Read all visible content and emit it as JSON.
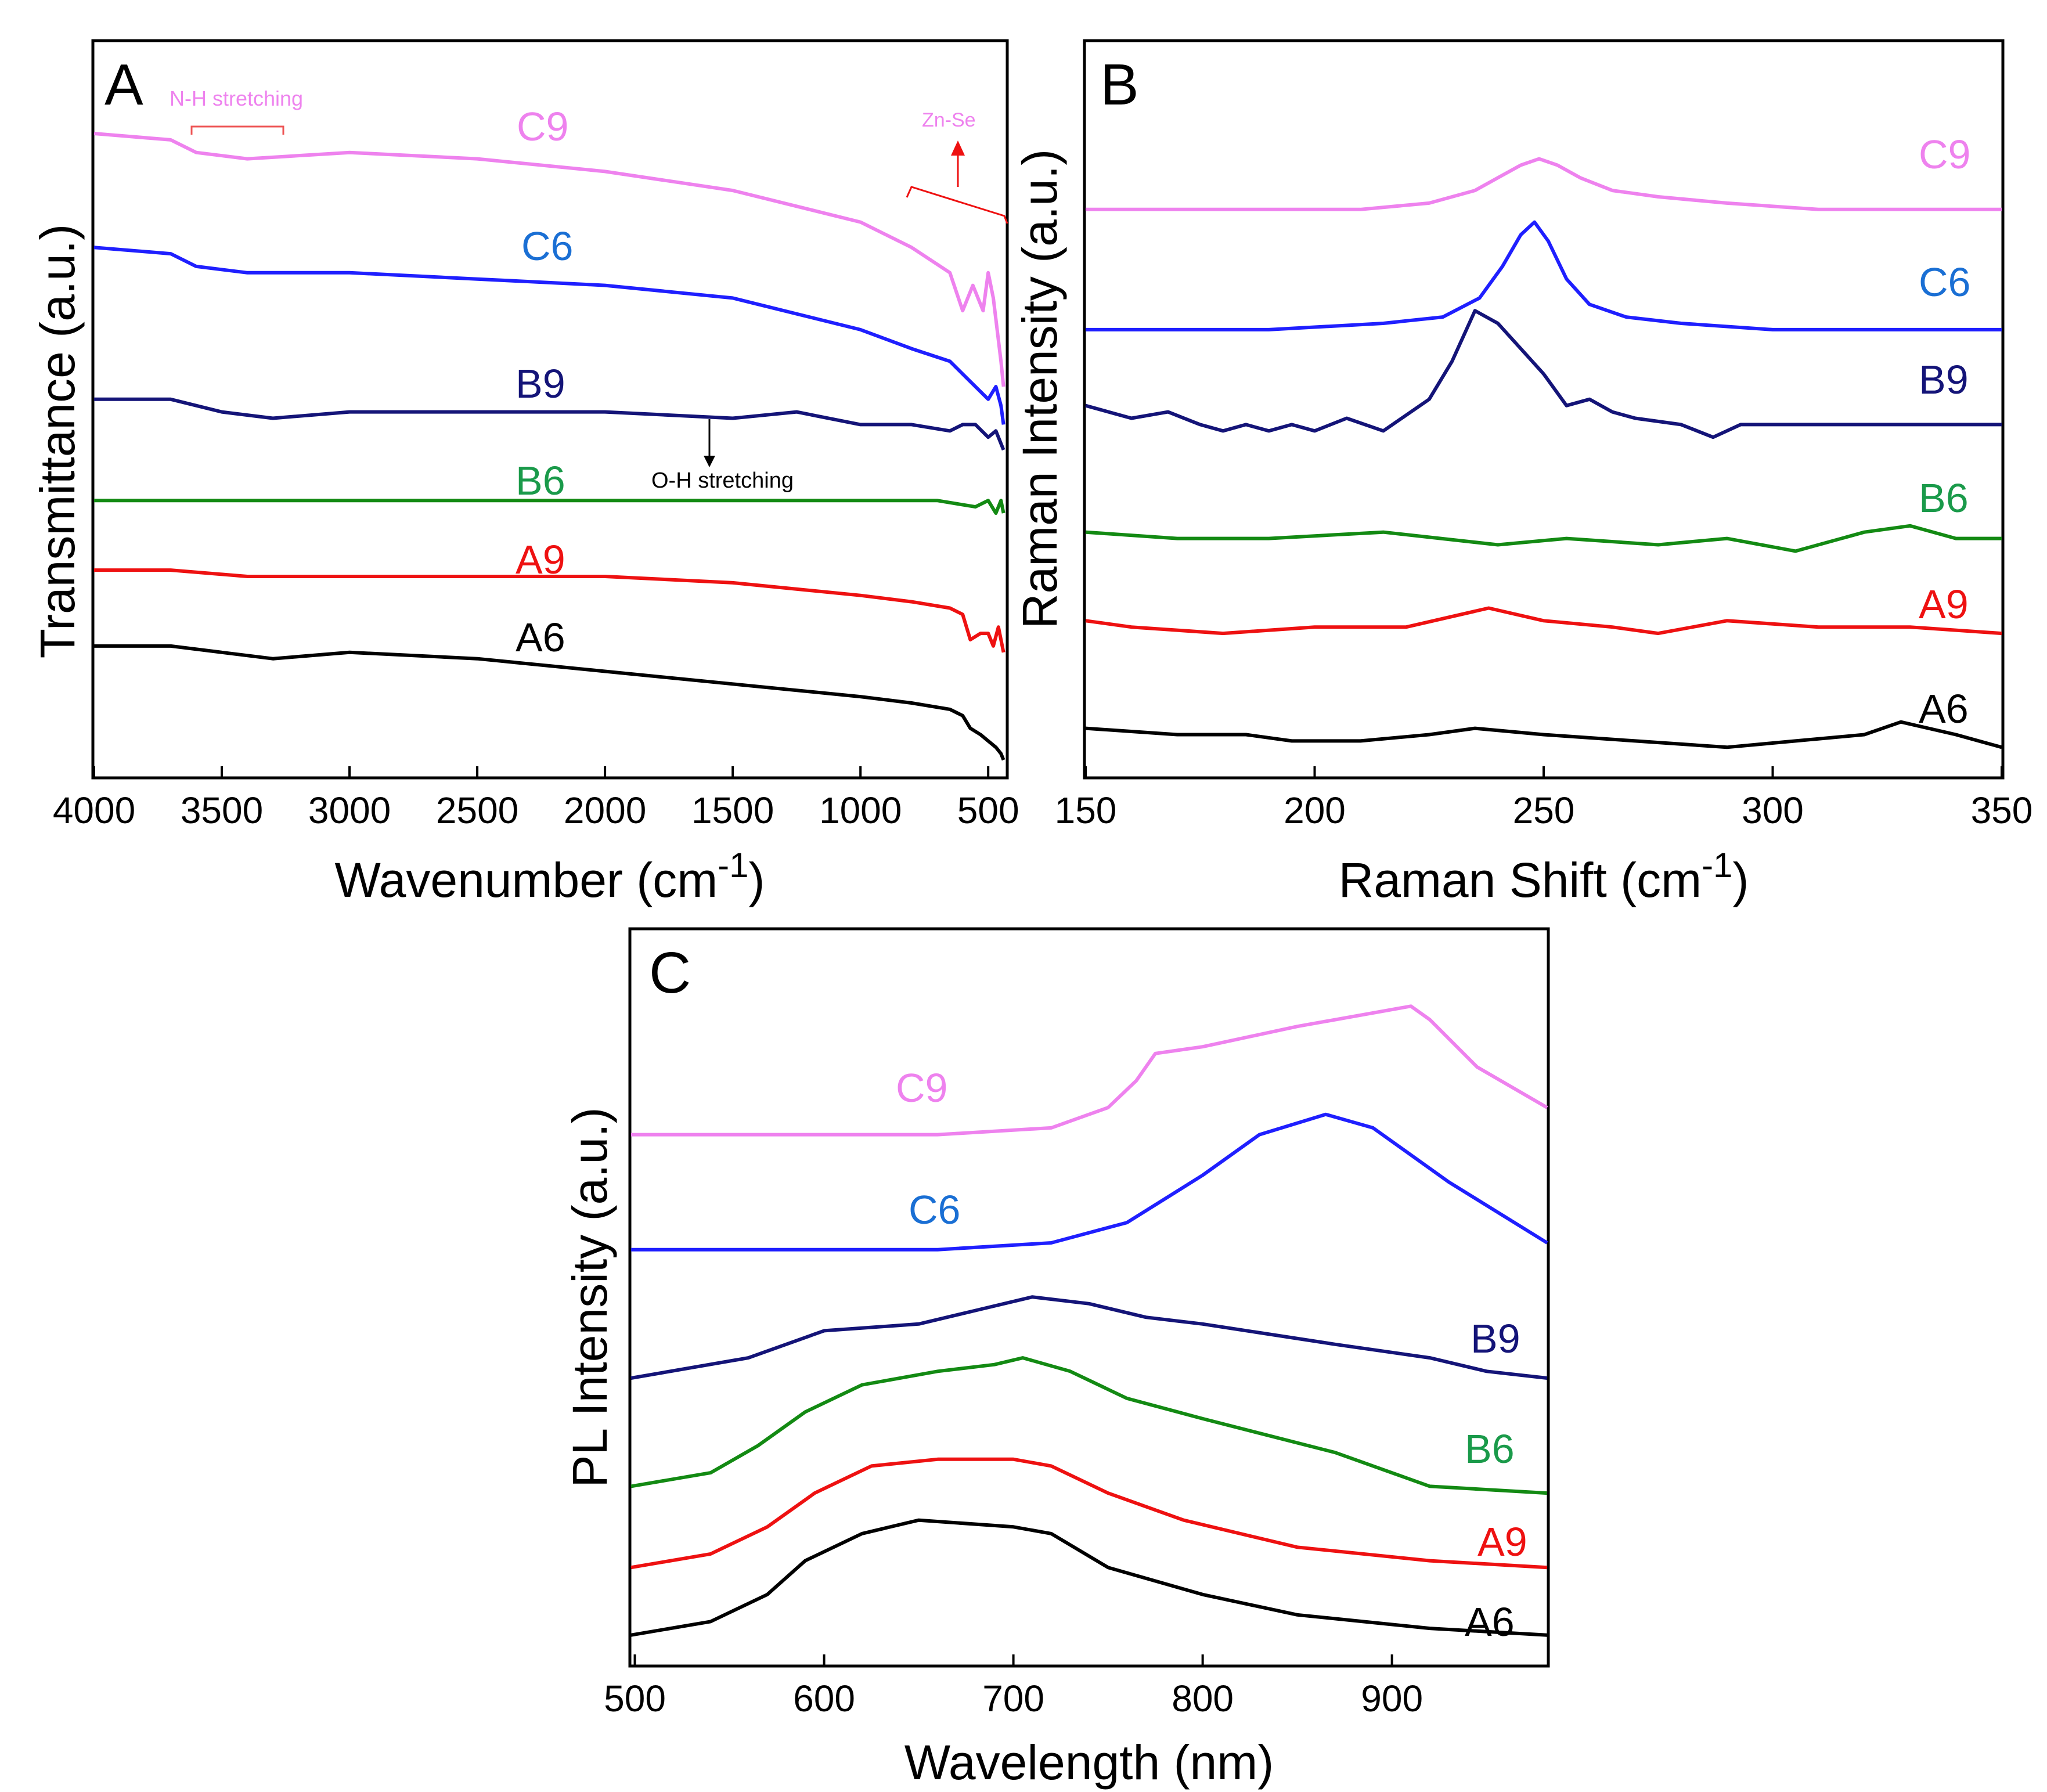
{
  "chart_data": [
    {
      "id": "A",
      "type": "line",
      "panel_label": "A",
      "xlabel": "Wavenumber (cm",
      "xlabel_sup": "-1",
      "xlabel_close": ")",
      "ylabel": "Transmittance (a.u.)",
      "xlim": [
        4000,
        430
      ],
      "ylim": [
        0,
        100
      ],
      "x_ticks": [
        4000,
        3500,
        3000,
        2500,
        2000,
        1500,
        1000,
        500
      ],
      "x_tick_labels": [
        "4000",
        "3500",
        "3000",
        "2500",
        "2000",
        "1500",
        "1000",
        "500"
      ],
      "series": [
        {
          "name": "C9",
          "color": "#ee82ee",
          "x": [
            4000,
            3700,
            3600,
            3400,
            3000,
            2500,
            2000,
            1500,
            1000,
            800,
            650,
            600,
            560,
            520,
            500,
            480,
            450,
            440
          ],
          "values": [
            100,
            99,
            97,
            96,
            97,
            96,
            94,
            91,
            86,
            82,
            78,
            72,
            76,
            72,
            78,
            74,
            64,
            60
          ]
        },
        {
          "name": "C6",
          "color": "#1f1fff",
          "x": [
            4000,
            3700,
            3600,
            3400,
            3000,
            2500,
            2000,
            1500,
            1000,
            800,
            650,
            600,
            550,
            500,
            470,
            450,
            440
          ],
          "values": [
            82,
            81,
            79,
            78,
            78,
            77,
            76,
            74,
            69,
            66,
            64,
            62,
            60,
            58,
            60,
            57,
            54
          ]
        },
        {
          "name": "B9",
          "color": "#141478",
          "x": [
            4000,
            3700,
            3500,
            3300,
            3000,
            2500,
            2000,
            1500,
            1250,
            1000,
            800,
            650,
            600,
            550,
            500,
            470,
            450,
            440
          ],
          "values": [
            58,
            58,
            56,
            55,
            56,
            56,
            56,
            55,
            56,
            54,
            54,
            53,
            54,
            54,
            52,
            53,
            51,
            50
          ]
        },
        {
          "name": "B6",
          "color": "#138a13",
          "x": [
            4000,
            3500,
            3000,
            2500,
            2000,
            1500,
            1000,
            700,
            550,
            500,
            470,
            450,
            440
          ],
          "values": [
            42,
            42,
            42,
            42,
            42,
            42,
            42,
            42,
            41,
            42,
            40,
            42,
            40
          ]
        },
        {
          "name": "A9",
          "color": "#ee1111",
          "x": [
            4000,
            3700,
            3400,
            3000,
            2500,
            2000,
            1500,
            1000,
            800,
            650,
            600,
            570,
            530,
            500,
            480,
            460,
            440
          ],
          "values": [
            31,
            31,
            30,
            30,
            30,
            30,
            29,
            27,
            26,
            25,
            24,
            20,
            21,
            21,
            19,
            22,
            18
          ]
        },
        {
          "name": "A6",
          "color": "#000000",
          "x": [
            4000,
            3700,
            3500,
            3300,
            3000,
            2500,
            2000,
            1500,
            1000,
            800,
            650,
            600,
            570,
            530,
            500,
            470,
            450,
            440
          ],
          "values": [
            19,
            19,
            18,
            17,
            18,
            17,
            15,
            13,
            11,
            10,
            9,
            8,
            6,
            5,
            4,
            3,
            2,
            1
          ]
        }
      ],
      "annotations": {
        "nh": "N-H stretching",
        "oh": "O-H stretching",
        "znse": "Zn-Se"
      }
    },
    {
      "id": "B",
      "type": "line",
      "panel_label": "B",
      "xlabel": "Raman Shift (cm",
      "xlabel_sup": "-1",
      "xlabel_close": ")",
      "ylabel": "Raman Intensity (a.u.)",
      "xlim": [
        150,
        350
      ],
      "ylim": [
        0,
        100
      ],
      "x_ticks": [
        150,
        200,
        250,
        300,
        350
      ],
      "x_tick_labels": [
        "150",
        "200",
        "250",
        "300",
        "350"
      ],
      "series": [
        {
          "name": "C9",
          "color": "#ee82ee",
          "x": [
            150,
            180,
            210,
            225,
            235,
            240,
            245,
            249,
            253,
            258,
            265,
            275,
            290,
            310,
            330,
            350
          ],
          "values": [
            88,
            88,
            88,
            89,
            91,
            93,
            95,
            96,
            95,
            93,
            91,
            90,
            89,
            88,
            88,
            88
          ]
        },
        {
          "name": "C6",
          "color": "#1f1fff",
          "x": [
            150,
            190,
            215,
            228,
            236,
            241,
            245,
            248,
            251,
            255,
            260,
            268,
            280,
            300,
            330,
            350
          ],
          "values": [
            69,
            69,
            70,
            71,
            74,
            79,
            84,
            86,
            83,
            77,
            73,
            71,
            70,
            69,
            69,
            69
          ]
        },
        {
          "name": "B9",
          "color": "#141478",
          "x": [
            150,
            160,
            168,
            175,
            180,
            185,
            190,
            195,
            200,
            207,
            215,
            225,
            230,
            235,
            240,
            245,
            250,
            255,
            260,
            265,
            270,
            280,
            287,
            293,
            300,
            320,
            335,
            350
          ],
          "values": [
            57,
            55,
            56,
            54,
            53,
            54,
            53,
            54,
            53,
            55,
            53,
            58,
            64,
            72,
            70,
            66,
            62,
            57,
            58,
            56,
            55,
            54,
            52,
            54,
            54,
            54,
            54,
            54
          ]
        },
        {
          "name": "B6",
          "color": "#138a13",
          "x": [
            150,
            170,
            190,
            215,
            240,
            255,
            275,
            290,
            305,
            320,
            330,
            340,
            350
          ],
          "values": [
            37,
            36,
            36,
            37,
            35,
            36,
            35,
            36,
            34,
            37,
            38,
            36,
            36
          ]
        },
        {
          "name": "A9",
          "color": "#ee1111",
          "x": [
            150,
            160,
            180,
            200,
            220,
            238,
            250,
            265,
            275,
            290,
            310,
            330,
            350
          ],
          "values": [
            23,
            22,
            21,
            22,
            22,
            25,
            23,
            22,
            21,
            23,
            22,
            22,
            21
          ]
        },
        {
          "name": "A6",
          "color": "#000000",
          "x": [
            150,
            170,
            185,
            195,
            210,
            225,
            235,
            250,
            270,
            290,
            305,
            320,
            328,
            340,
            350
          ],
          "values": [
            6,
            5,
            5,
            4,
            4,
            5,
            6,
            5,
            4,
            3,
            4,
            5,
            7,
            5,
            3
          ]
        }
      ]
    },
    {
      "id": "C",
      "type": "line",
      "panel_label": "C",
      "xlabel": "Wavelength (nm)",
      "ylabel": "PL Intensity (a.u.)",
      "xlim": [
        498,
        982
      ],
      "ylim": [
        0,
        100
      ],
      "x_ticks": [
        500,
        600,
        700,
        800,
        900
      ],
      "x_tick_labels": [
        "500",
        "600",
        "700",
        "800",
        "900"
      ],
      "series": [
        {
          "name": "C9",
          "color": "#ee82ee",
          "x": [
            498,
            560,
            660,
            720,
            750,
            765,
            775,
            800,
            850,
            910,
            920,
            945,
            982
          ],
          "values": [
            76,
            76,
            76,
            77,
            80,
            84,
            88,
            89,
            92,
            95,
            93,
            86,
            80
          ]
        },
        {
          "name": "C6",
          "color": "#1f1fff",
          "x": [
            498,
            560,
            660,
            720,
            760,
            800,
            830,
            865,
            890,
            930,
            982
          ],
          "values": [
            59,
            59,
            59,
            60,
            63,
            70,
            76,
            79,
            77,
            69,
            60
          ]
        },
        {
          "name": "B9",
          "color": "#141478",
          "x": [
            498,
            560,
            600,
            650,
            680,
            710,
            740,
            770,
            800,
            870,
            920,
            950,
            982
          ],
          "values": [
            40,
            43,
            47,
            48,
            50,
            52,
            51,
            49,
            48,
            45,
            43,
            41,
            40
          ]
        },
        {
          "name": "B6",
          "color": "#138a13",
          "x": [
            498,
            540,
            565,
            590,
            620,
            660,
            690,
            705,
            730,
            760,
            800,
            870,
            920,
            982
          ],
          "values": [
            24,
            26,
            30,
            35,
            39,
            41,
            42,
            43,
            41,
            37,
            34,
            29,
            24,
            23
          ]
        },
        {
          "name": "A9",
          "color": "#ee1111",
          "x": [
            498,
            540,
            570,
            595,
            625,
            660,
            700,
            720,
            750,
            790,
            850,
            920,
            982
          ],
          "values": [
            12,
            14,
            18,
            23,
            27,
            28,
            28,
            27,
            23,
            19,
            15,
            13,
            12
          ]
        },
        {
          "name": "A6",
          "color": "#000000",
          "x": [
            498,
            540,
            570,
            590,
            620,
            650,
            700,
            720,
            750,
            800,
            850,
            920,
            982
          ],
          "values": [
            2,
            4,
            8,
            13,
            17,
            19,
            18,
            17,
            12,
            8,
            5,
            3,
            2
          ]
        }
      ]
    }
  ]
}
